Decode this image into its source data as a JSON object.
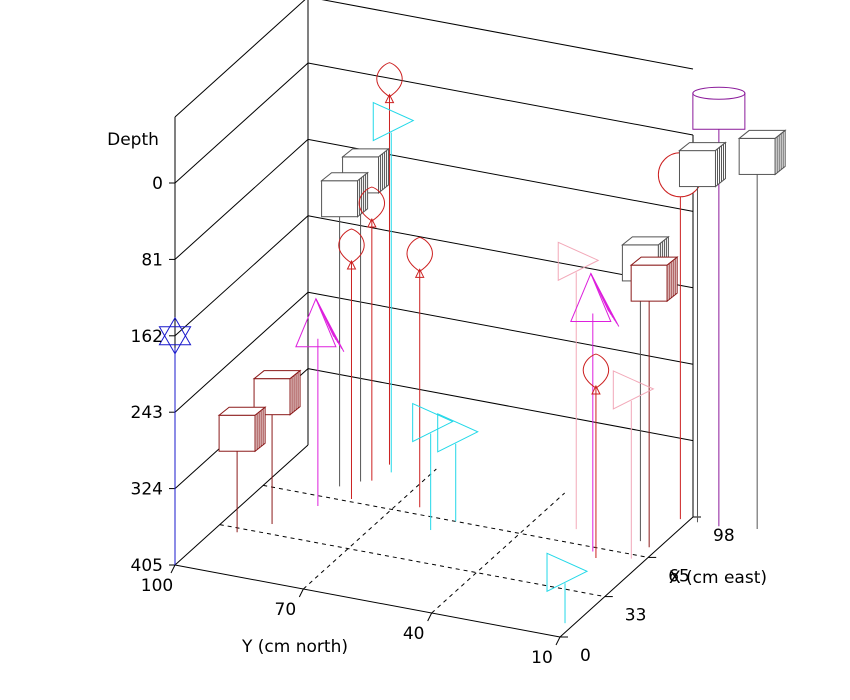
{
  "chart_data": {
    "type": "scatter3d",
    "title": "",
    "axes": {
      "depth": {
        "label": "Depth",
        "ticks": [
          "0",
          "81",
          "162",
          "243",
          "324",
          "405"
        ],
        "range": [
          0,
          405
        ],
        "inverted": true
      },
      "y": {
        "label": "Y (cm north)",
        "ticks": [
          "100",
          "70",
          "40",
          "10"
        ],
        "range": [
          100,
          10
        ]
      },
      "x": {
        "label": "X (cm east)",
        "ticks": [
          "0",
          "33",
          "65",
          "98"
        ],
        "range": [
          0,
          98
        ]
      }
    },
    "grid": true,
    "markers": [
      {
        "shape": "star6",
        "color": "#1a1acc",
        "x": 0,
        "y": 100,
        "depth": 162
      },
      {
        "shape": "spade",
        "color": "#cc2020",
        "x": 95,
        "y": 80,
        "depth": 0
      },
      {
        "shape": "triangle-right",
        "color": "#22d8e8",
        "x": 90,
        "y": 78,
        "depth": 32
      },
      {
        "shape": "cube",
        "color": "#555555",
        "x": 80,
        "y": 82,
        "depth": 80
      },
      {
        "shape": "cube",
        "color": "#555555",
        "x": 74,
        "y": 85,
        "depth": 100
      },
      {
        "shape": "spade",
        "color": "#cc2020",
        "x": 82,
        "y": 80,
        "depth": 115
      },
      {
        "shape": "spade",
        "color": "#cc2020",
        "x": 67,
        "y": 80,
        "depth": 140
      },
      {
        "shape": "spade",
        "color": "#cc2020",
        "x": 70,
        "y": 65,
        "depth": 140
      },
      {
        "shape": "cone",
        "color": "#dd20dd",
        "x": 58,
        "y": 85,
        "depth": 215
      },
      {
        "shape": "cube",
        "color": "#8b1a1a",
        "x": 40,
        "y": 90,
        "depth": 270
      },
      {
        "shape": "cube",
        "color": "#8b1a1a",
        "x": 30,
        "y": 95,
        "depth": 300
      },
      {
        "shape": "triangle-right",
        "color": "#22d8e8",
        "x": 56,
        "y": 58,
        "depth": 290
      },
      {
        "shape": "triangle-right",
        "color": "#22d8e8",
        "x": 65,
        "y": 55,
        "depth": 310
      },
      {
        "shape": "triangle-right",
        "color": "#f2a8b8",
        "x": 75,
        "y": 30,
        "depth": 120
      },
      {
        "shape": "cylinder",
        "color": "#8a1a9a",
        "x": 95,
        "y": 3,
        "depth": -35
      },
      {
        "shape": "cube",
        "color": "#555555",
        "x": 98,
        "y": -5,
        "depth": 10
      },
      {
        "shape": "sphere",
        "color": "#cc2020",
        "x": 95,
        "y": 12,
        "depth": 40
      },
      {
        "shape": "cube",
        "color": "#555555",
        "x": 95,
        "y": 8,
        "depth": 30
      },
      {
        "shape": "cube",
        "color": "#555555",
        "x": 75,
        "y": 15,
        "depth": 110
      },
      {
        "shape": "cube",
        "color": "#8b1a1a",
        "x": 72,
        "y": 12,
        "depth": 125
      },
      {
        "shape": "cone",
        "color": "#dd20dd",
        "x": 62,
        "y": 22,
        "depth": 140
      },
      {
        "shape": "spade",
        "color": "#cc2020",
        "x": 58,
        "y": 20,
        "depth": 210
      },
      {
        "shape": "triangle-right",
        "color": "#f2a8b8",
        "x": 62,
        "y": 13,
        "depth": 225
      },
      {
        "shape": "triangle-right",
        "color": "#22d8e8",
        "x": 10,
        "y": 12,
        "depth": 350
      }
    ]
  }
}
